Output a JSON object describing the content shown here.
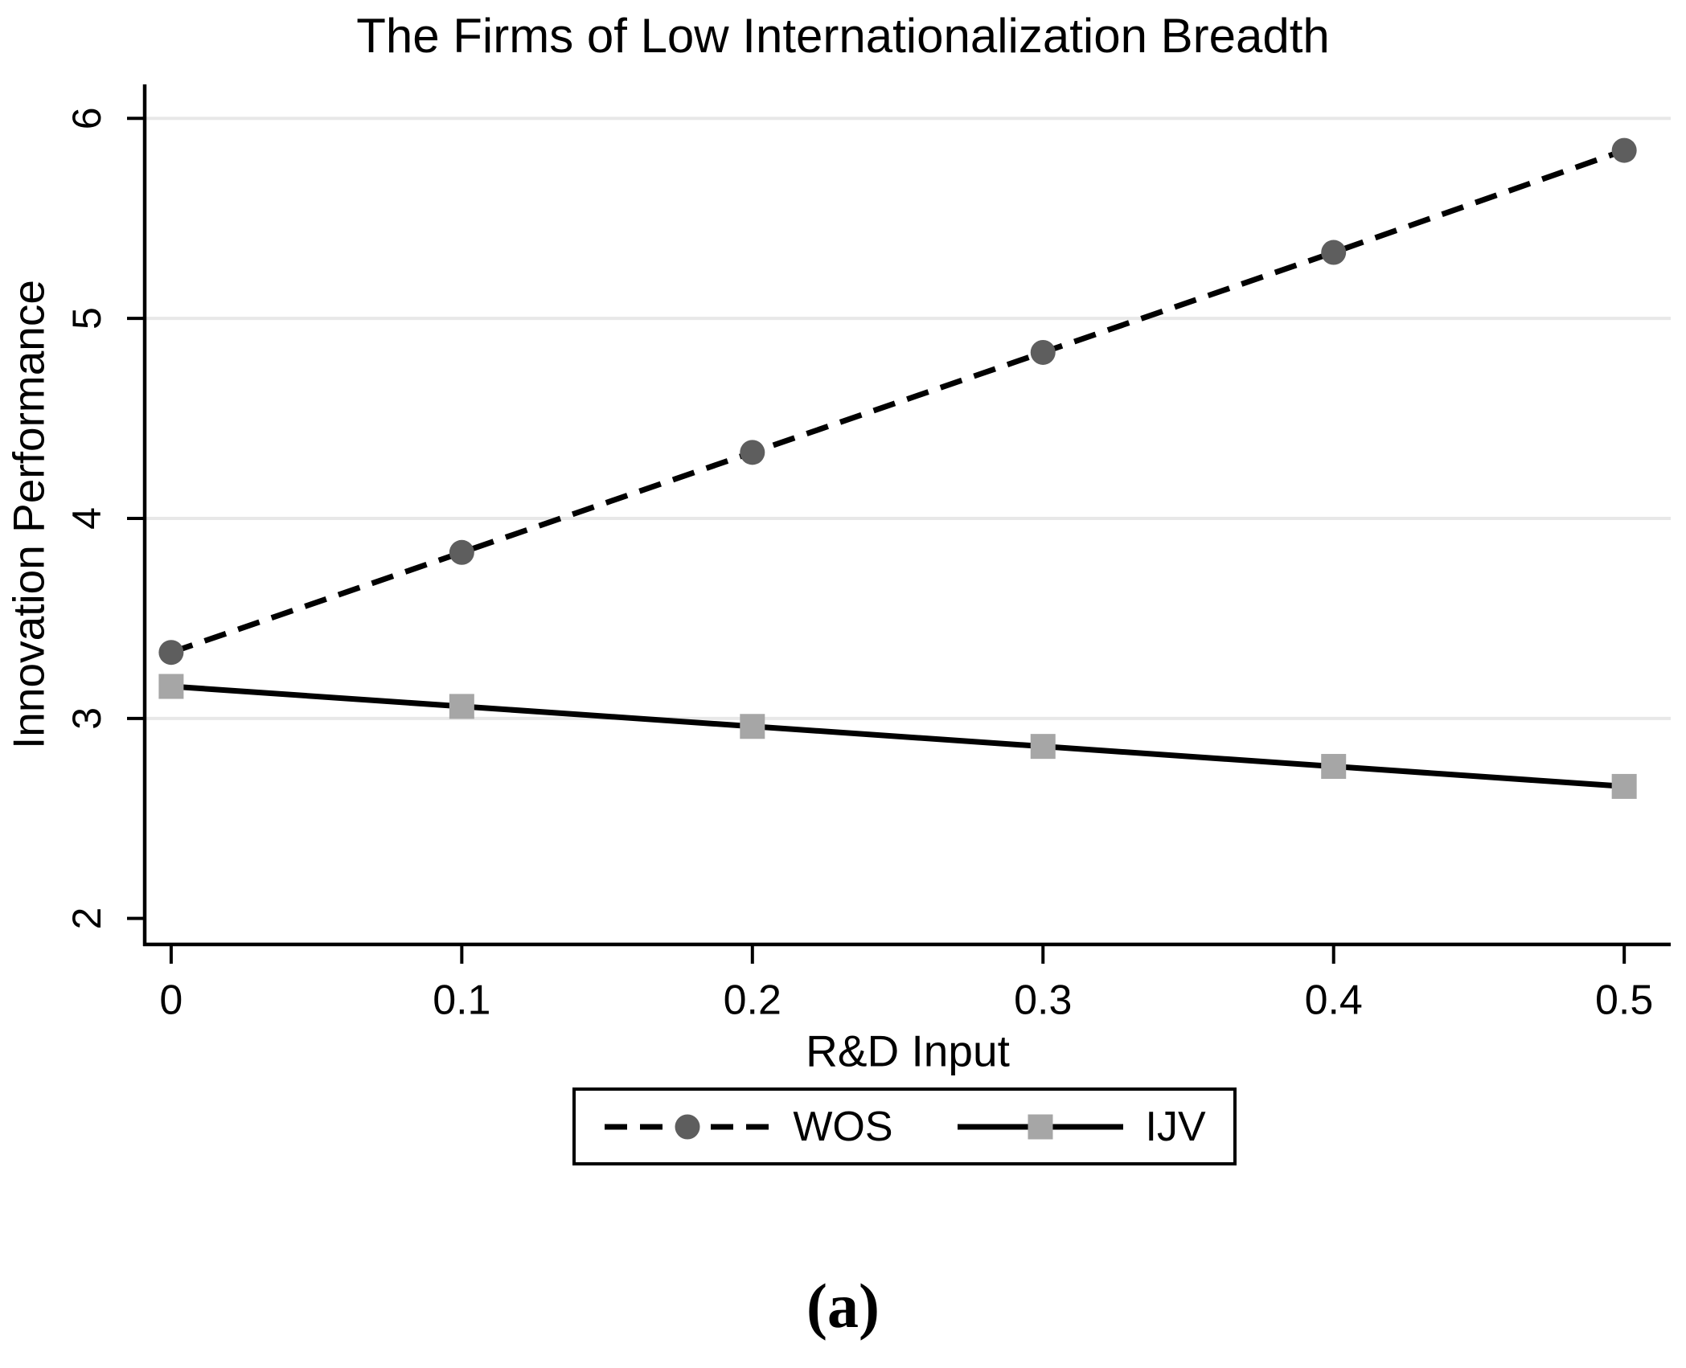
{
  "chart_data": {
    "type": "line",
    "title": "The Firms of Low Internationalization Breadth",
    "xlabel": "R&D Input",
    "ylabel": "Innovation Performance",
    "x": [
      0,
      0.1,
      0.2,
      0.3,
      0.4,
      0.5
    ],
    "x_tick_labels": [
      "0",
      "0.1",
      "0.2",
      "0.3",
      "0.4",
      "0.5"
    ],
    "y_ticks": [
      2,
      3,
      4,
      5,
      6
    ],
    "y_tick_labels": [
      "2",
      "3",
      "4",
      "5",
      "6"
    ],
    "gridline_y_values": [
      3,
      4,
      5,
      6
    ],
    "xlim": [
      -0.0091,
      0.516
    ],
    "ylim": [
      1.87,
      6.17
    ],
    "grid": true,
    "legend_position": "bottom-center-boxed",
    "series": [
      {
        "name": "WOS",
        "values": [
          3.33,
          3.83,
          4.33,
          4.83,
          5.33,
          5.84
        ],
        "line_style": "dashed",
        "line_color": "#000000",
        "marker": "circle",
        "marker_color": "#5e5e5e"
      },
      {
        "name": "IJV",
        "values": [
          3.16,
          3.06,
          2.96,
          2.86,
          2.76,
          2.66
        ],
        "line_style": "solid",
        "line_color": "#000000",
        "marker": "square",
        "marker_color": "#a6a6a6"
      }
    ]
  },
  "caption": {
    "label": "(a)"
  },
  "colors": {
    "grid": "#e8e8e8",
    "axis": "#000000",
    "text": "#000000",
    "background": "#ffffff"
  }
}
